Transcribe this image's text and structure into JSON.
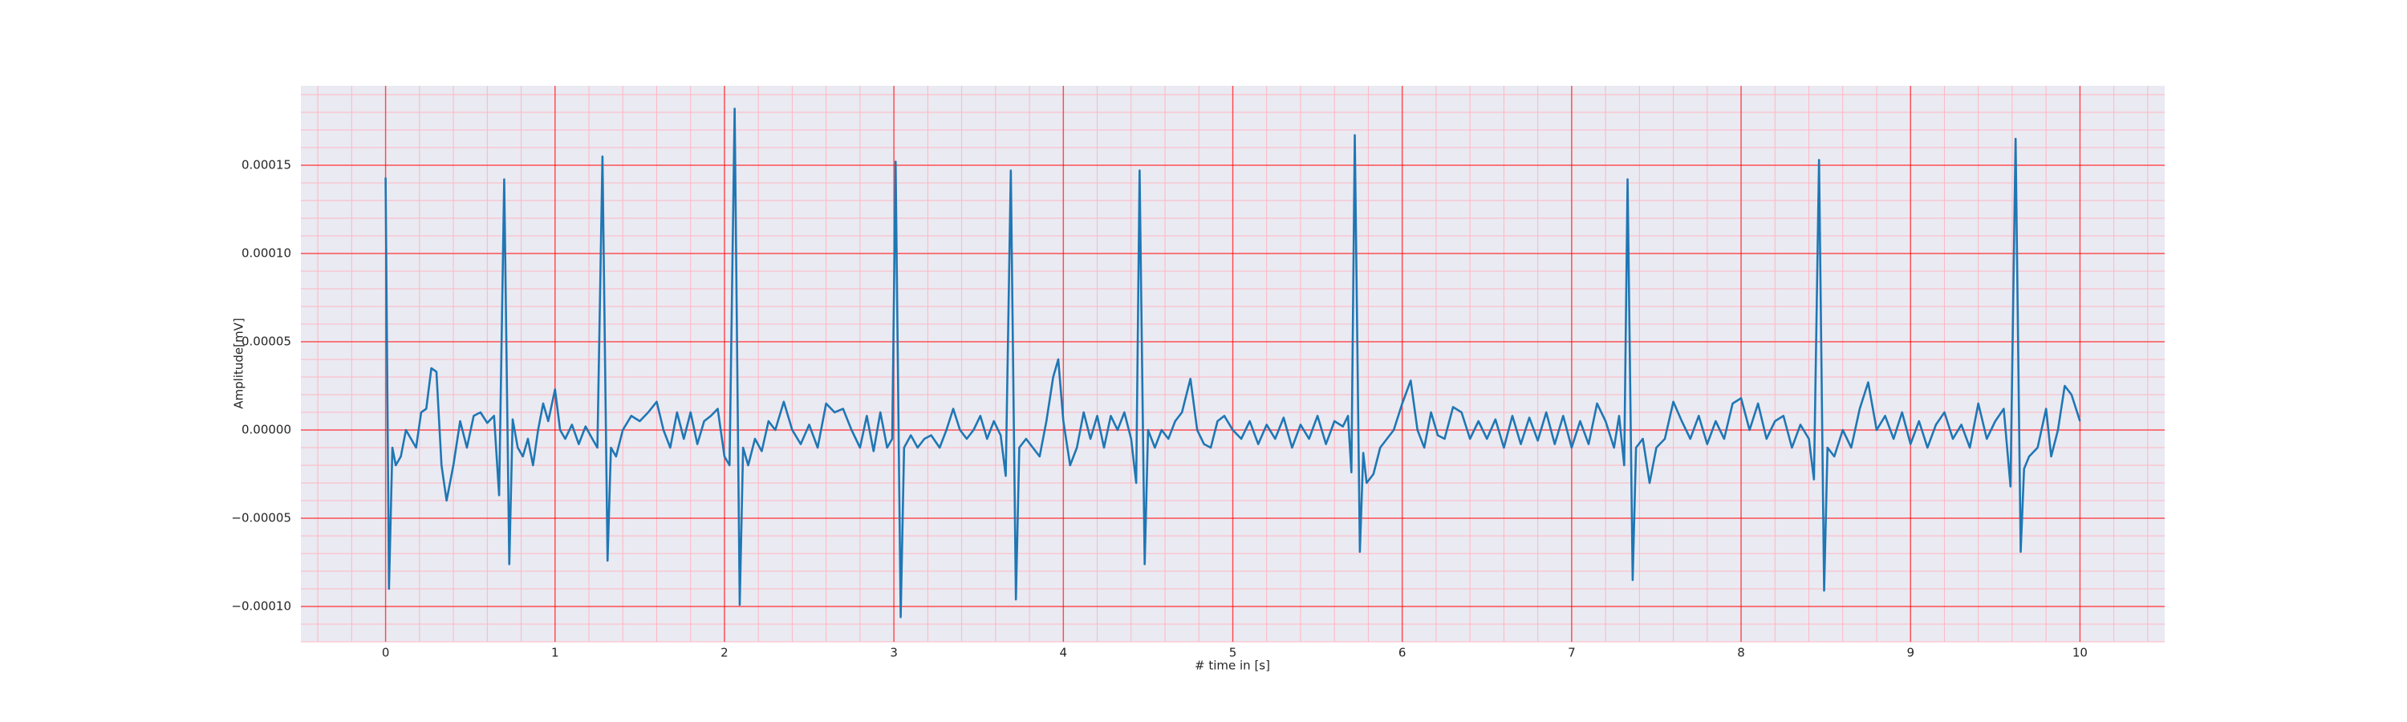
{
  "chart_data": {
    "type": "line",
    "xlabel": "# time in [s]",
    "ylabel": "Amplitude[mV]",
    "color": "#1f77b4",
    "background": "#eaeaf2",
    "grid": true,
    "grid_color": "#ff0000",
    "minor_grid": {
      "x": 0.2,
      "y": 1e-05,
      "color": "#ffb6c1"
    },
    "xlim": [
      -0.5,
      10.5
    ],
    "ylim": [
      -0.00012,
      0.000195
    ],
    "xticks": [
      0,
      1,
      2,
      3,
      4,
      5,
      6,
      7,
      8,
      9,
      10
    ],
    "yticks": [
      {
        "value": -0.0001,
        "label": "−0.00010"
      },
      {
        "value": -5e-05,
        "label": "−0.00005"
      },
      {
        "value": 0,
        "label": "0.00000"
      },
      {
        "value": 5e-05,
        "label": "0.00005"
      },
      {
        "value": 0.0001,
        "label": "0.00010"
      },
      {
        "value": 0.00015,
        "label": "0.00015"
      }
    ],
    "x": [
      0,
      0.02,
      0.04,
      0.06,
      0.09,
      0.12,
      0.15,
      0.18,
      0.21,
      0.24,
      0.27,
      0.3,
      0.33,
      0.36,
      0.4,
      0.44,
      0.48,
      0.52,
      0.56,
      0.6,
      0.64,
      0.67,
      0.7,
      0.73,
      0.75,
      0.78,
      0.81,
      0.84,
      0.87,
      0.9,
      0.93,
      0.96,
      1.0,
      1.03,
      1.06,
      1.1,
      1.14,
      1.18,
      1.22,
      1.25,
      1.28,
      1.31,
      1.33,
      1.36,
      1.4,
      1.45,
      1.5,
      1.55,
      1.6,
      1.64,
      1.68,
      1.72,
      1.76,
      1.8,
      1.84,
      1.88,
      1.92,
      1.96,
      2.0,
      2.03,
      2.06,
      2.09,
      2.11,
      2.14,
      2.18,
      2.22,
      2.26,
      2.3,
      2.35,
      2.4,
      2.45,
      2.5,
      2.55,
      2.6,
      2.65,
      2.7,
      2.75,
      2.8,
      2.84,
      2.88,
      2.92,
      2.96,
      2.99,
      3.01,
      3.04,
      3.06,
      3.1,
      3.14,
      3.18,
      3.22,
      3.27,
      3.31,
      3.35,
      3.39,
      3.43,
      3.47,
      3.51,
      3.55,
      3.59,
      3.63,
      3.66,
      3.69,
      3.72,
      3.74,
      3.78,
      3.82,
      3.86,
      3.9,
      3.94,
      3.97,
      4.0,
      4.04,
      4.08,
      4.12,
      4.16,
      4.2,
      4.24,
      4.28,
      4.32,
      4.36,
      4.4,
      4.43,
      4.45,
      4.48,
      4.5,
      4.54,
      4.58,
      4.62,
      4.66,
      4.7,
      4.75,
      4.79,
      4.83,
      4.87,
      4.91,
      4.95,
      5.0,
      5.05,
      5.1,
      5.15,
      5.2,
      5.25,
      5.3,
      5.35,
      5.4,
      5.45,
      5.5,
      5.55,
      5.6,
      5.65,
      5.68,
      5.7,
      5.72,
      5.75,
      5.77,
      5.79,
      5.83,
      5.87,
      5.91,
      5.95,
      6.0,
      6.05,
      6.09,
      6.13,
      6.17,
      6.21,
      6.25,
      6.3,
      6.35,
      6.4,
      6.45,
      6.5,
      6.55,
      6.6,
      6.65,
      6.7,
      6.75,
      6.8,
      6.85,
      6.9,
      6.95,
      7.0,
      7.05,
      7.1,
      7.15,
      7.2,
      7.25,
      7.28,
      7.31,
      7.33,
      7.36,
      7.38,
      7.42,
      7.46,
      7.5,
      7.55,
      7.6,
      7.65,
      7.7,
      7.75,
      7.8,
      7.85,
      7.9,
      7.95,
      8.0,
      8.05,
      8.1,
      8.15,
      8.2,
      8.25,
      8.3,
      8.35,
      8.4,
      8.43,
      8.46,
      8.49,
      8.51,
      8.55,
      8.6,
      8.65,
      8.7,
      8.75,
      8.8,
      8.85,
      8.9,
      8.95,
      9.0,
      9.05,
      9.1,
      9.15,
      9.2,
      9.25,
      9.3,
      9.35,
      9.4,
      9.45,
      9.5,
      9.55,
      9.59,
      9.62,
      9.65,
      9.67,
      9.7,
      9.75,
      9.8,
      9.83,
      9.87,
      9.91,
      9.95,
      10.0
    ],
    "values": [
      0.000143,
      -9e-05,
      -1e-05,
      -2e-05,
      -1.5e-05,
      0.0,
      -5e-06,
      -1e-05,
      1e-05,
      1.2e-05,
      3.5e-05,
      3.3e-05,
      -2e-05,
      -4e-05,
      -2e-05,
      5e-06,
      -1e-05,
      8e-06,
      1e-05,
      4e-06,
      8e-06,
      -3.7e-05,
      0.000142,
      -7.6e-05,
      6e-06,
      -1e-05,
      -1.5e-05,
      -5e-06,
      -2e-05,
      0.0,
      1.5e-05,
      5e-06,
      2.3e-05,
      0.0,
      -5e-06,
      3e-06,
      -8e-06,
      2e-06,
      -5e-06,
      -1e-05,
      0.000155,
      -7.4e-05,
      -1e-05,
      -1.5e-05,
      0.0,
      8e-06,
      5e-06,
      1e-05,
      1.6e-05,
      0.0,
      -1e-05,
      1e-05,
      -5e-06,
      1e-05,
      -8e-06,
      5e-06,
      8e-06,
      1.2e-05,
      -1.5e-05,
      -2e-05,
      0.000182,
      -9.9e-05,
      -1e-05,
      -2e-05,
      -5e-06,
      -1.2e-05,
      5e-06,
      0.0,
      1.6e-05,
      0.0,
      -8e-06,
      3e-06,
      -1e-05,
      1.5e-05,
      1e-05,
      1.2e-05,
      0.0,
      -1e-05,
      8e-06,
      -1.2e-05,
      1e-05,
      -1e-05,
      -5e-06,
      0.000152,
      -0.000106,
      -1e-05,
      -3e-06,
      -1e-05,
      -5e-06,
      -3e-06,
      -1e-05,
      0.0,
      1.2e-05,
      0.0,
      -5e-06,
      0.0,
      8e-06,
      -5e-06,
      5e-06,
      -3e-06,
      -2.6e-05,
      0.000147,
      -9.6e-05,
      -1e-05,
      -5e-06,
      -1e-05,
      -1.5e-05,
      5e-06,
      3e-05,
      4e-05,
      5e-06,
      -2e-05,
      -1e-05,
      1e-05,
      -5e-06,
      8e-06,
      -1e-05,
      8e-06,
      0.0,
      1e-05,
      -5e-06,
      -3e-05,
      0.000147,
      -7.6e-05,
      0.0,
      -1e-05,
      0.0,
      -5e-06,
      5e-06,
      1e-05,
      2.9e-05,
      0.0,
      -8e-06,
      -1e-05,
      5e-06,
      8e-06,
      0.0,
      -5e-06,
      5e-06,
      -8e-06,
      3e-06,
      -5e-06,
      7e-06,
      -1e-05,
      3e-06,
      -5e-06,
      8e-06,
      -8e-06,
      5e-06,
      2e-06,
      8e-06,
      -2.4e-05,
      0.000167,
      -6.9e-05,
      -1.3e-05,
      -3e-05,
      -2.5e-05,
      -1e-05,
      -5e-06,
      0.0,
      1.5e-05,
      2.8e-05,
      0.0,
      -1e-05,
      1e-05,
      -3e-06,
      -5e-06,
      1.3e-05,
      1e-05,
      -5e-06,
      5e-06,
      -5e-06,
      6e-06,
      -1e-05,
      8e-06,
      -8e-06,
      7e-06,
      -6e-06,
      1e-05,
      -8e-06,
      8e-06,
      -1e-05,
      5e-06,
      -8e-06,
      1.5e-05,
      5e-06,
      -1e-05,
      8e-06,
      -2e-05,
      0.000142,
      -8.5e-05,
      -1e-05,
      -5e-06,
      -3e-05,
      -1e-05,
      -5e-06,
      1.6e-05,
      5e-06,
      -5e-06,
      8e-06,
      -8e-06,
      5e-06,
      -5e-06,
      1.5e-05,
      1.8e-05,
      0.0,
      1.5e-05,
      -5e-06,
      5e-06,
      8e-06,
      -1e-05,
      3e-06,
      -5e-06,
      -2.8e-05,
      0.000153,
      -9.1e-05,
      -1e-05,
      -1.5e-05,
      0.0,
      -1e-05,
      1.2e-05,
      2.7e-05,
      0.0,
      8e-06,
      -5e-06,
      1e-05,
      -8e-06,
      5e-06,
      -1e-05,
      3e-06,
      1e-05,
      -5e-06,
      3e-06,
      -1e-05,
      1.5e-05,
      -5e-06,
      5e-06,
      1.2e-05,
      -3.2e-05,
      0.000165,
      -6.9e-05,
      -2.2e-05,
      -1.5e-05,
      -1e-05,
      1.2e-05,
      -1.5e-05,
      0.0,
      2.5e-05,
      2e-05,
      5e-06
    ]
  }
}
